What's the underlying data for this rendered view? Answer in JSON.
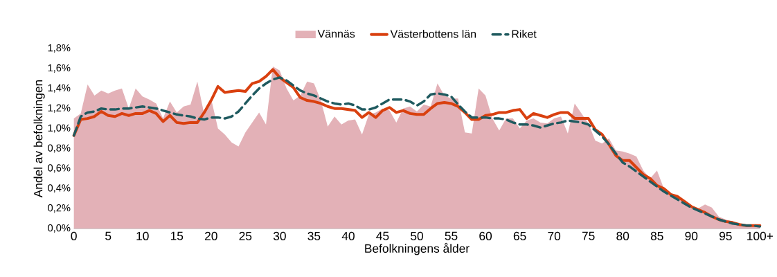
{
  "chart_data": {
    "type": "line",
    "xlabel": "Befolkningens ålder",
    "ylabel": "Andel av befolkningen",
    "legend": "top",
    "categories": [
      "0",
      null,
      null,
      null,
      null,
      "5",
      null,
      null,
      null,
      null,
      "10",
      null,
      null,
      null,
      null,
      "15",
      null,
      null,
      null,
      null,
      "20",
      null,
      null,
      null,
      null,
      "25",
      null,
      null,
      null,
      null,
      "30",
      null,
      null,
      null,
      null,
      "35",
      null,
      null,
      null,
      null,
      "40",
      null,
      null,
      null,
      null,
      "45",
      null,
      null,
      null,
      null,
      "50",
      null,
      null,
      null,
      null,
      "55",
      null,
      null,
      null,
      null,
      "60",
      null,
      null,
      null,
      null,
      "65",
      null,
      null,
      null,
      null,
      "70",
      null,
      null,
      null,
      null,
      "75",
      null,
      null,
      null,
      null,
      "80",
      null,
      null,
      null,
      null,
      "85",
      null,
      null,
      null,
      null,
      "90",
      null,
      null,
      null,
      null,
      "95",
      null,
      null,
      null,
      null,
      "100+"
    ],
    "ylim": [
      0,
      1.8
    ],
    "yticks": [
      {
        "value": 0,
        "label": "0,0%"
      },
      {
        "value": 0.2,
        "label": "0,2%"
      },
      {
        "value": 0.4,
        "label": "0,4%"
      },
      {
        "value": 0.6,
        "label": "0,6%"
      },
      {
        "value": 0.8,
        "label": "0,8%"
      },
      {
        "value": 1.0,
        "label": "1,0%"
      },
      {
        "value": 1.2,
        "label": "1,2%"
      },
      {
        "value": 1.4,
        "label": "1,4%"
      },
      {
        "value": 1.6,
        "label": "1,6%"
      },
      {
        "value": 1.8,
        "label": "1,8%"
      }
    ],
    "series": [
      {
        "name": "Vännäs",
        "type": "area",
        "color": "#e3b1b7",
        "values": [
          1.1,
          1.15,
          1.44,
          1.33,
          1.38,
          1.35,
          1.38,
          1.4,
          1.2,
          1.4,
          1.32,
          1.29,
          1.25,
          1.1,
          1.27,
          1.16,
          1.22,
          1.24,
          1.47,
          1.14,
          1.3,
          1.0,
          0.94,
          0.86,
          0.82,
          0.96,
          1.06,
          1.16,
          1.04,
          1.62,
          1.58,
          1.4,
          1.28,
          1.33,
          1.47,
          1.45,
          1.28,
          1.02,
          1.12,
          1.04,
          1.08,
          1.09,
          0.94,
          1.14,
          1.16,
          1.2,
          1.18,
          1.06,
          1.2,
          1.22,
          1.17,
          1.24,
          1.22,
          1.45,
          1.33,
          1.3,
          1.3,
          0.96,
          0.95,
          1.4,
          1.33,
          1.1,
          0.98,
          1.1,
          1.1,
          1.0,
          1.08,
          1.1,
          1.06,
          1.05,
          1.1,
          1.12,
          0.95,
          1.25,
          1.15,
          1.05,
          0.88,
          0.85,
          0.9,
          0.78,
          0.77,
          0.75,
          0.72,
          0.58,
          0.5,
          0.58,
          0.4,
          0.36,
          0.3,
          0.26,
          0.22,
          0.2,
          0.24,
          0.21,
          0.12,
          0.09,
          0.07,
          0.05,
          0.03,
          0.02,
          0.02
        ]
      },
      {
        "name": "Västerbottens län",
        "line_style": "solid",
        "color": "#d9400f",
        "values": [
          0.93,
          1.09,
          1.1,
          1.12,
          1.17,
          1.13,
          1.12,
          1.15,
          1.13,
          1.15,
          1.15,
          1.18,
          1.15,
          1.07,
          1.13,
          1.06,
          1.05,
          1.06,
          1.06,
          1.16,
          1.28,
          1.42,
          1.36,
          1.37,
          1.38,
          1.37,
          1.45,
          1.47,
          1.52,
          1.59,
          1.51,
          1.46,
          1.41,
          1.31,
          1.28,
          1.27,
          1.25,
          1.22,
          1.2,
          1.2,
          1.19,
          1.18,
          1.11,
          1.16,
          1.11,
          1.18,
          1.21,
          1.16,
          1.18,
          1.15,
          1.14,
          1.14,
          1.2,
          1.25,
          1.26,
          1.25,
          1.22,
          1.16,
          1.09,
          1.09,
          1.13,
          1.14,
          1.16,
          1.16,
          1.18,
          1.19,
          1.1,
          1.15,
          1.13,
          1.11,
          1.14,
          1.16,
          1.16,
          1.1,
          1.1,
          1.1,
          0.99,
          0.94,
          0.84,
          0.73,
          0.68,
          0.68,
          0.61,
          0.54,
          0.5,
          0.43,
          0.4,
          0.34,
          0.32,
          0.27,
          0.22,
          0.19,
          0.16,
          0.12,
          0.09,
          0.07,
          0.06,
          0.04,
          0.03,
          0.03,
          0.03
        ]
      },
      {
        "name": "Riket",
        "line_style": "dashed",
        "color": "#1f5a5f",
        "values": [
          0.93,
          1.12,
          1.16,
          1.17,
          1.2,
          1.19,
          1.19,
          1.2,
          1.2,
          1.21,
          1.22,
          1.21,
          1.2,
          1.18,
          1.16,
          1.14,
          1.13,
          1.12,
          1.1,
          1.09,
          1.11,
          1.11,
          1.1,
          1.12,
          1.17,
          1.25,
          1.33,
          1.4,
          1.45,
          1.49,
          1.51,
          1.48,
          1.43,
          1.38,
          1.35,
          1.33,
          1.3,
          1.27,
          1.25,
          1.24,
          1.25,
          1.23,
          1.19,
          1.19,
          1.21,
          1.25,
          1.29,
          1.29,
          1.29,
          1.27,
          1.23,
          1.27,
          1.34,
          1.35,
          1.34,
          1.32,
          1.24,
          1.17,
          1.11,
          1.11,
          1.11,
          1.1,
          1.1,
          1.09,
          1.06,
          1.04,
          1.04,
          1.03,
          1.01,
          1.03,
          1.05,
          1.06,
          1.08,
          1.07,
          1.06,
          1.04,
          0.98,
          0.92,
          0.84,
          0.75,
          0.66,
          0.62,
          0.57,
          0.52,
          0.47,
          0.42,
          0.37,
          0.33,
          0.29,
          0.25,
          0.21,
          0.18,
          0.15,
          0.12,
          0.09,
          0.07,
          0.05,
          0.04,
          0.03,
          0.03,
          0.02
        ]
      }
    ]
  }
}
